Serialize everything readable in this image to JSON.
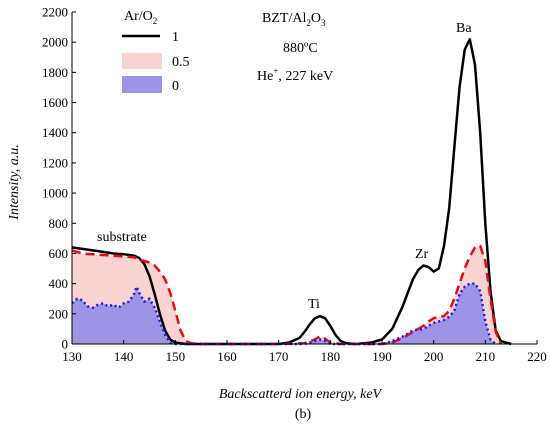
{
  "chart_data": {
    "type": "area",
    "xlabel": "Backscatterd ion energy, keV",
    "ylabel": "Intensity, a.u.",
    "panel_label": "(b)",
    "xlim": [
      130,
      220
    ],
    "ylim": [
      0,
      2200
    ],
    "xticks": [
      130,
      140,
      150,
      160,
      170,
      180,
      190,
      200,
      210,
      220
    ],
    "yticks": [
      0,
      200,
      400,
      600,
      800,
      1000,
      1200,
      1400,
      1600,
      1800,
      2000,
      2200
    ],
    "legend": {
      "title": "Ar/O",
      "title_sub": "2",
      "placement": "top-left",
      "entries": [
        "1",
        "0.5",
        "0"
      ]
    },
    "annotations": {
      "line1_a": "BZT/Al",
      "line1_sub": "2",
      "line1_b": "O",
      "line1_sub2": "3",
      "line2": "880ºC",
      "line3_a": "He",
      "line3_sup": "+",
      "line3_b": ", 227 keV",
      "peaks": [
        "Ba",
        "Zr",
        "Ti",
        "substrate"
      ]
    },
    "series": [
      {
        "name": "1",
        "style": "solid-line",
        "color": "#000000",
        "x": [
          130,
          132,
          134,
          136,
          138,
          140,
          142,
          143,
          144,
          145,
          146,
          147,
          148,
          149,
          150,
          151,
          152,
          155,
          160,
          165,
          170,
          172,
          174,
          175,
          176,
          177,
          178,
          179,
          180,
          181,
          182,
          183,
          185,
          188,
          190,
          192,
          194,
          195,
          196,
          197,
          198,
          199,
          200,
          201,
          202,
          203,
          204,
          205,
          206,
          207,
          208,
          209,
          210,
          211,
          212,
          213,
          215
        ],
        "y": [
          640,
          630,
          620,
          610,
          600,
          595,
          585,
          570,
          530,
          450,
          330,
          200,
          90,
          30,
          10,
          5,
          0,
          0,
          0,
          0,
          0,
          10,
          40,
          80,
          130,
          170,
          185,
          170,
          120,
          60,
          20,
          5,
          0,
          10,
          30,
          100,
          250,
          340,
          430,
          490,
          520,
          510,
          480,
          500,
          650,
          900,
          1300,
          1700,
          1950,
          2020,
          1850,
          1400,
          800,
          350,
          90,
          20,
          0
        ]
      },
      {
        "name": "0.5",
        "style": "dashed-red-with-fill",
        "color": "#e01010",
        "fill": "#f9d2d2",
        "x": [
          130,
          132,
          134,
          136,
          138,
          140,
          142,
          143,
          144,
          145,
          146,
          147,
          148,
          149,
          150,
          151,
          152,
          153,
          155,
          160,
          170,
          175,
          177,
          178,
          179,
          180,
          182,
          185,
          190,
          192,
          194,
          196,
          198,
          199,
          200,
          201,
          202,
          203,
          204,
          205,
          206,
          207,
          208,
          209,
          210,
          211,
          212,
          213
        ],
        "y": [
          620,
          600,
          595,
          590,
          585,
          580,
          575,
          560,
          550,
          540,
          520,
          480,
          430,
          340,
          220,
          90,
          20,
          5,
          0,
          0,
          0,
          5,
          30,
          50,
          35,
          10,
          0,
          0,
          0,
          10,
          40,
          80,
          120,
          150,
          170,
          180,
          185,
          220,
          300,
          400,
          500,
          580,
          640,
          650,
          550,
          300,
          80,
          0
        ]
      },
      {
        "name": "0",
        "style": "dotted-blue-with-fill",
        "color": "#1a1ae0",
        "fill": "#9d94e8",
        "x": [
          130,
          131,
          132,
          133,
          134,
          135,
          136,
          137,
          138,
          139,
          140,
          141,
          142,
          142.5,
          143,
          144,
          145,
          146,
          147,
          148,
          149,
          150,
          151,
          152,
          160,
          170,
          175,
          177,
          178,
          179,
          180,
          185,
          190,
          192,
          194,
          196,
          198,
          199,
          200,
          201,
          202,
          203,
          204,
          205,
          206,
          207,
          208,
          209,
          210,
          211,
          212
        ],
        "y": [
          270,
          300,
          290,
          250,
          240,
          260,
          270,
          250,
          260,
          240,
          270,
          280,
          330,
          380,
          340,
          280,
          300,
          240,
          150,
          60,
          10,
          0,
          0,
          0,
          0,
          0,
          0,
          20,
          30,
          20,
          0,
          0,
          0,
          20,
          50,
          90,
          100,
          120,
          140,
          150,
          160,
          180,
          220,
          330,
          380,
          400,
          400,
          350,
          150,
          30,
          0
        ]
      }
    ]
  }
}
